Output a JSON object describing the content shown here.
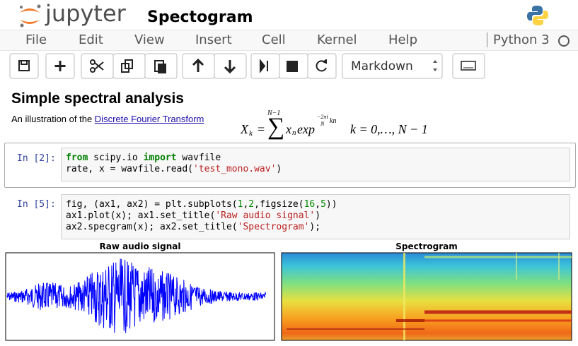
{
  "header": {
    "logo_text": "jupyter",
    "notebook_name": "Spectogram",
    "kernel": "Python 3"
  },
  "menu": [
    "File",
    "Edit",
    "View",
    "Insert",
    "Cell",
    "Kernel",
    "Help"
  ],
  "toolbar": {
    "cell_type": "Markdown"
  },
  "markdown_cell": {
    "heading": "Simple spectral analysis",
    "text": "An illustration of the ",
    "link": "Discrete Fourier Transform",
    "formula": {
      "lhs": "X",
      "lhs_sub": "k",
      "equals": "=",
      "sum_top": "N−1",
      "term": "x",
      "term_sub": "n",
      "func": "exp",
      "exp_num": "−2πi",
      "exp_den": "N",
      "exp_tail": "kn",
      "range": "k = 0,…, N − 1"
    }
  },
  "code_cells": [
    {
      "prompt": "In [2]:",
      "lines": [
        [
          "from",
          " scipy.io ",
          "import",
          " wavfile"
        ],
        [
          "rate, x = wavfile.read(",
          "'test_mono.wav'",
          ")"
        ]
      ]
    },
    {
      "prompt": "In [5]:",
      "lines": [
        [
          "fig, (ax1, ax2) = plt.subplots(",
          "1",
          ",",
          "2",
          ",figsize(",
          "16",
          ",",
          "5",
          "))"
        ],
        [
          "ax1.plot(x); ax1.set_title(",
          "'Raw audio signal'",
          ")"
        ],
        [
          "ax2.specgram(x); ax2.set_title(",
          "'Spectrogram'",
          ");"
        ]
      ]
    }
  ],
  "outputs": {
    "left_title": "Raw audio signal",
    "right_title": "Spectrogram"
  }
}
